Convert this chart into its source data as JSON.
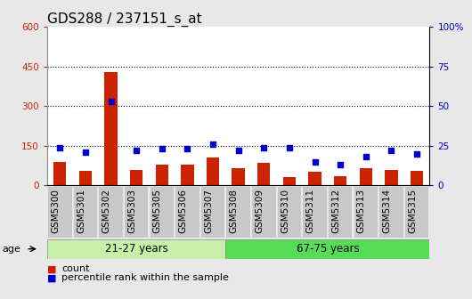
{
  "title": "GDS288 / 237151_s_at",
  "categories": [
    "GSM5300",
    "GSM5301",
    "GSM5302",
    "GSM5303",
    "GSM5305",
    "GSM5306",
    "GSM5307",
    "GSM5308",
    "GSM5309",
    "GSM5310",
    "GSM5311",
    "GSM5312",
    "GSM5313",
    "GSM5314",
    "GSM5315"
  ],
  "counts": [
    90,
    55,
    430,
    60,
    80,
    80,
    105,
    65,
    85,
    30,
    50,
    35,
    65,
    60,
    55
  ],
  "percentiles": [
    24,
    21,
    53,
    22,
    23,
    23,
    26,
    22,
    24,
    24,
    15,
    13,
    18,
    22,
    20
  ],
  "age_groups": [
    {
      "label": "21-27 years",
      "start": 0,
      "end": 7,
      "color": "#c8f0a8"
    },
    {
      "label": "67-75 years",
      "start": 7,
      "end": 15,
      "color": "#55dd55"
    }
  ],
  "ylim_left": [
    0,
    600
  ],
  "ylim_right": [
    0,
    100
  ],
  "yticks_left": [
    0,
    150,
    300,
    450,
    600
  ],
  "ytick_labels_left": [
    "0",
    "150",
    "300",
    "450",
    "600"
  ],
  "yticks_right": [
    0,
    25,
    50,
    75,
    100
  ],
  "ytick_labels_right": [
    "0",
    "25",
    "50",
    "75",
    "100%"
  ],
  "bar_color": "#cc2200",
  "dot_color": "#0000cc",
  "bg_color": "#e8e8e8",
  "plot_bg": "#ffffff",
  "tick_bg_color": "#c8c8c8",
  "age_label": "age",
  "legend_count": "count",
  "legend_percentile": "percentile rank within the sample",
  "title_fontsize": 11,
  "tick_fontsize": 7.5
}
